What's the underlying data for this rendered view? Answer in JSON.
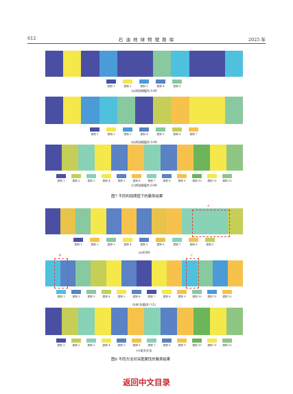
{
  "header": {
    "page_number": "612",
    "journal": "石 油 地 球 物 理 勘 探",
    "year": "2025 年"
  },
  "colors": {
    "dark_blue": "#4b4fa3",
    "yellow": "#f4e84a",
    "sky_blue": "#4b9bd8",
    "cyan": "#4fc0de",
    "teal": "#88c9a0",
    "olive": "#c5cf57",
    "orange": "#f7c24c",
    "mint": "#88d2b6",
    "steel": "#5a82c5",
    "green": "#6cb55a",
    "gold": "#e7c34a",
    "light_green": "#8fc684",
    "marker_red": "#e23a3a",
    "link_red": "#c8232c"
  },
  "figure7": {
    "caption": "图7 不同判别阈值下的聚类结果",
    "panels": [
      {
        "subcaption": "(a)判别阈值为 0.60",
        "strip": [
          "dark_blue",
          "yellow",
          "dark_blue",
          "sky_blue",
          "dark_blue",
          "dark_blue",
          "teal",
          "cyan",
          "dark_blue",
          "dark_blue",
          "cyan"
        ],
        "legend": [
          {
            "label": "类别 1",
            "color": "dark_blue"
          },
          {
            "label": "类别 2",
            "color": "yellow"
          },
          {
            "label": "类别 3",
            "color": "sky_blue"
          },
          {
            "label": "类别 4",
            "color": "steel"
          },
          {
            "label": "类别 5",
            "color": "teal"
          }
        ]
      },
      {
        "subcaption": "(b)判别阈值为 0.90",
        "strip": [
          "dark_blue",
          "yellow",
          "sky_blue",
          "cyan",
          "teal",
          "dark_blue",
          "olive",
          "orange",
          "yellow",
          "yellow",
          "teal"
        ],
        "legend": [
          {
            "label": "类别 1",
            "color": "dark_blue"
          },
          {
            "label": "类别 2",
            "color": "yellow"
          },
          {
            "label": "类别 3",
            "color": "sky_blue"
          },
          {
            "label": "类别 4",
            "color": "steel"
          },
          {
            "label": "类别 5",
            "color": "teal"
          },
          {
            "label": "类别 6",
            "color": "olive"
          },
          {
            "label": "类别 7",
            "color": "orange"
          }
        ]
      },
      {
        "subcaption": "(c)判别阈值为 0.98",
        "strip": [
          "dark_blue",
          "olive",
          "mint",
          "yellow",
          "steel",
          "orange",
          "mint",
          "steel",
          "orange",
          "green",
          "yellow",
          "light_green"
        ],
        "legend": [
          {
            "label": "类别 1",
            "color": "dark_blue"
          },
          {
            "label": "类别 2",
            "color": "olive"
          },
          {
            "label": "类别 3",
            "color": "mint"
          },
          {
            "label": "类别 4",
            "color": "yellow"
          },
          {
            "label": "类别 5",
            "color": "steel"
          },
          {
            "label": "类别 6",
            "color": "orange"
          },
          {
            "label": "类别 7",
            "color": "mint"
          },
          {
            "label": "类别 8",
            "color": "steel"
          },
          {
            "label": "类别 9",
            "color": "orange"
          },
          {
            "label": "类别 10",
            "color": "green"
          },
          {
            "label": "类别 11",
            "color": "yellow"
          },
          {
            "label": "类别 12",
            "color": "light_green"
          }
        ]
      }
    ]
  },
  "figure8": {
    "caption": "图8 不同方法对深度属性的聚类结果",
    "panels": [
      {
        "subcaption": "(a)SOM",
        "strip": [
          "dark_blue",
          "gold",
          "teal",
          "yellow",
          "steel",
          "orange",
          "steel",
          "gold",
          "orange",
          "mint",
          "mint",
          "mint",
          "olive"
        ],
        "legend": [
          {
            "label": "类别 1",
            "color": "dark_blue"
          },
          {
            "label": "类别 2",
            "color": "orange"
          },
          {
            "label": "类别 3",
            "color": "teal"
          },
          {
            "label": "类别 4",
            "color": "yellow"
          },
          {
            "label": "类别 5",
            "color": "steel"
          },
          {
            "label": "类别 6",
            "color": "gold"
          },
          {
            "label": "类别 7",
            "color": "mint"
          },
          {
            "label": "类别 8",
            "color": "orange"
          },
          {
            "label": "类别 9",
            "color": "olive"
          }
        ],
        "marker_label": "A"
      },
      {
        "subcaption": "(b)K-均值(K=12)",
        "strip": [
          "cyan",
          "steel",
          "teal",
          "olive",
          "yellow",
          "steel",
          "dark_blue",
          "yellow",
          "orange",
          "cyan",
          "teal",
          "sky_blue",
          "orange"
        ],
        "legend": [
          {
            "label": "类别 1",
            "color": "cyan"
          },
          {
            "label": "类别 2",
            "color": "steel"
          },
          {
            "label": "类别 3",
            "color": "teal"
          },
          {
            "label": "类别 4",
            "color": "olive"
          },
          {
            "label": "类别 5",
            "color": "yellow"
          },
          {
            "label": "类别 6",
            "color": "steel"
          },
          {
            "label": "类别 7",
            "color": "dark_blue"
          },
          {
            "label": "类别 8",
            "color": "yellow"
          },
          {
            "label": "类别 9",
            "color": "orange"
          },
          {
            "label": "类别 10",
            "color": "teal"
          },
          {
            "label": "类别 11",
            "color": "sky_blue"
          },
          {
            "label": "类别 12",
            "color": "orange"
          }
        ],
        "marker_labels": [
          "B",
          "C"
        ]
      },
      {
        "subcaption": "(c)本文方法",
        "strip": [
          "dark_blue",
          "olive",
          "mint",
          "yellow",
          "steel",
          "orange",
          "mint",
          "steel",
          "orange",
          "green",
          "yellow",
          "light_green"
        ],
        "legend": [
          {
            "label": "类别 1",
            "color": "dark_blue"
          },
          {
            "label": "类别 2",
            "color": "olive"
          },
          {
            "label": "类别 3",
            "color": "mint"
          },
          {
            "label": "类别 4",
            "color": "yellow"
          },
          {
            "label": "类别 5",
            "color": "steel"
          },
          {
            "label": "类别 6",
            "color": "orange"
          },
          {
            "label": "类别 7",
            "color": "mint"
          },
          {
            "label": "类别 8",
            "color": "steel"
          },
          {
            "label": "类别 9",
            "color": "orange"
          },
          {
            "label": "类别 10",
            "color": "green"
          },
          {
            "label": "类别 11",
            "color": "yellow"
          },
          {
            "label": "类别 12",
            "color": "light_green"
          }
        ]
      }
    ]
  },
  "footer_link": "返回中文目录"
}
